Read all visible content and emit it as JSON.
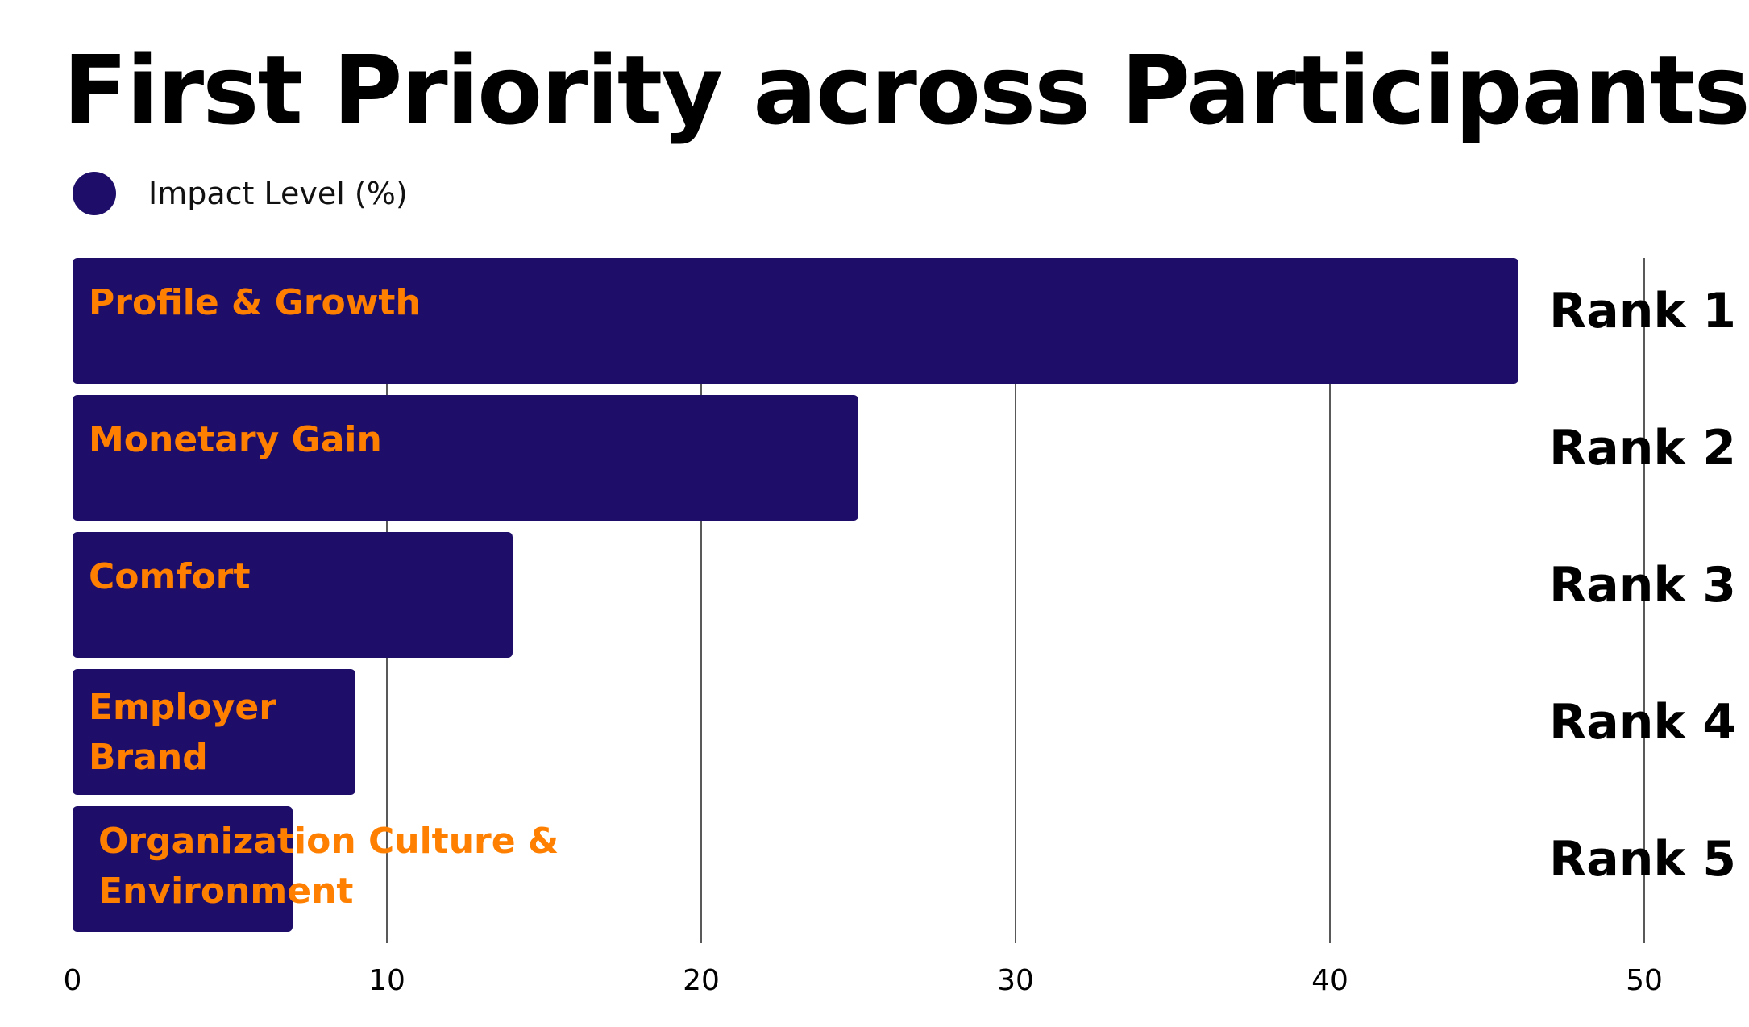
{
  "chart_data": {
    "type": "bar",
    "orientation": "horizontal",
    "title": "First Priority across Participants",
    "categories": [
      "Profile & Growth",
      "Monetary Gain",
      "Comfort",
      "Employer Brand",
      "Organization Culture & Environment"
    ],
    "series": [
      {
        "name": "Impact Level (%)",
        "values": [
          46,
          25,
          14,
          9,
          7
        ]
      }
    ],
    "rank_labels": [
      "Rank 1",
      "Rank 2",
      "Rank 3",
      "Rank 4",
      "Rank 5"
    ],
    "xlim": [
      0,
      50
    ],
    "x_ticks": [
      0,
      10,
      20,
      30,
      40,
      50
    ],
    "xlabel": "",
    "ylabel": "",
    "grid": "vertical",
    "legend_position": "top-left",
    "colors": {
      "bar": "#1E0E69",
      "category_label": "#FF8000",
      "gridline": "#222222"
    }
  }
}
